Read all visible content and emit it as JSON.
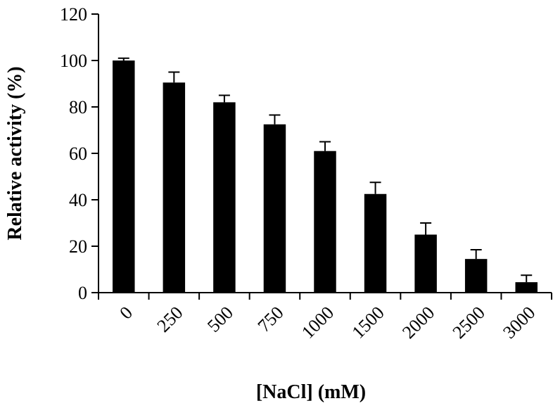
{
  "chart_data": {
    "type": "bar",
    "title": "",
    "xlabel": "[NaCl] (mM)",
    "ylabel": "Relative activity (%)",
    "categories": [
      "0",
      "250",
      "500",
      "750",
      "1000",
      "1500",
      "2000",
      "2500",
      "3000"
    ],
    "values": [
      100,
      90.5,
      82,
      72.5,
      61,
      42.5,
      25,
      14.5,
      4.5
    ],
    "errors": [
      1,
      4.5,
      3,
      4,
      4,
      5,
      5,
      4,
      3
    ],
    "ylim": [
      0,
      120
    ],
    "yticks": [
      "0",
      "20",
      "40",
      "60",
      "80",
      "100",
      "120"
    ],
    "grid": false,
    "bar_color": "#000000"
  }
}
